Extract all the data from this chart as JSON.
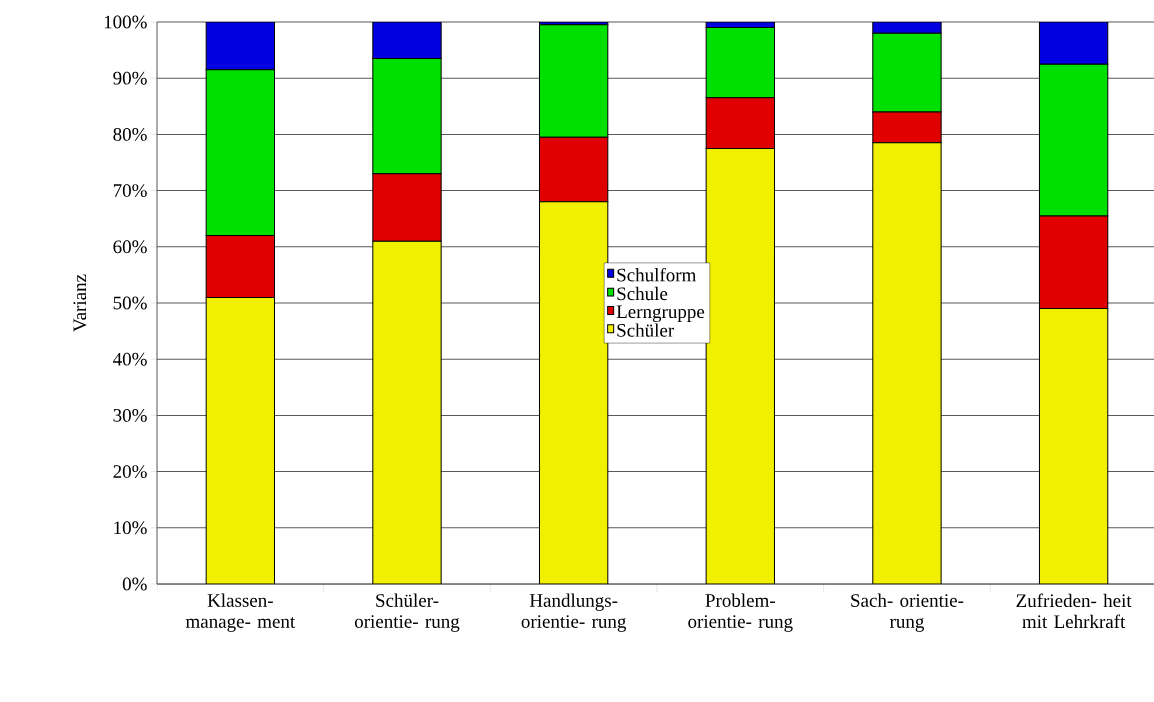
{
  "chart_data": {
    "type": "bar",
    "stacked": true,
    "ylabel": "Varianz",
    "categories": [
      "Klassen- manage- ment",
      "Schüler- orientie- rung",
      "Handlungs- orientie- rung",
      "Problem- orientie- rung",
      "Sach- orientie- rung",
      "Zufrieden- heit mit Lehrkraft"
    ],
    "series": [
      {
        "name": "Schüler",
        "color": "#f0f000",
        "values": [
          51,
          61,
          68,
          77.5,
          78.5,
          49
        ]
      },
      {
        "name": "Lerngruppe",
        "color": "#e00000",
        "values": [
          11,
          12,
          11.5,
          9,
          5.5,
          16.5
        ]
      },
      {
        "name": "Schule",
        "color": "#00e000",
        "values": [
          29.5,
          20.5,
          20,
          12.5,
          14,
          27
        ]
      },
      {
        "name": "Schulform",
        "color": "#0000e0",
        "values": [
          8.5,
          6.5,
          0.5,
          1,
          2,
          7.5
        ]
      }
    ],
    "ylim": [
      0,
      100
    ],
    "yticks": [
      {
        "value": 0,
        "label": "0%"
      },
      {
        "value": 10,
        "label": "10%"
      },
      {
        "value": 20,
        "label": "20%"
      },
      {
        "value": 30,
        "label": "30%"
      },
      {
        "value": 40,
        "label": "40%"
      },
      {
        "value": 50,
        "label": "50%"
      },
      {
        "value": 60,
        "label": "60%"
      },
      {
        "value": 70,
        "label": "70%"
      },
      {
        "value": 80,
        "label": "80%"
      },
      {
        "value": 90,
        "label": "90%"
      },
      {
        "value": 100,
        "label": "100%"
      }
    ],
    "grid": "y",
    "legend": "center"
  }
}
